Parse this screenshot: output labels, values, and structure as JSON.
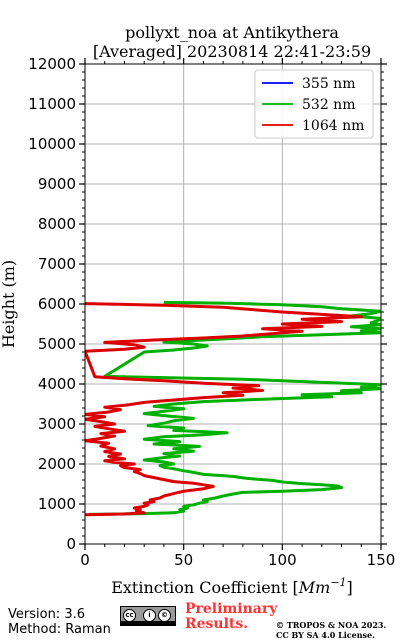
{
  "chart_data": {
    "type": "line",
    "title_line1": "pollyxt_noa at Antikythera",
    "title_line2": "[Averaged] 20230814 22:41-23:59",
    "xlabel": "Extinction Coefficient [",
    "xlabel_unit": "Mm",
    "xlabel_exp": "−1",
    "xlabel_close": "]",
    "ylabel": "Height (m)",
    "xlim": [
      0,
      150
    ],
    "ylim": [
      0,
      12000
    ],
    "xticks": [
      0,
      50,
      100,
      150
    ],
    "yticks": [
      0,
      1000,
      2000,
      3000,
      4000,
      5000,
      6000,
      7000,
      8000,
      9000,
      10000,
      11000,
      12000
    ],
    "grid": true,
    "legend_position": "top-right",
    "series": [
      {
        "name": "355 nm",
        "color": "#0000ff",
        "points": []
      },
      {
        "name": "532 nm",
        "color": "#00b000",
        "points": [
          [
            2,
            740
          ],
          [
            30,
            760
          ],
          [
            45,
            780
          ],
          [
            50,
            820
          ],
          [
            48,
            860
          ],
          [
            52,
            900
          ],
          [
            50,
            940
          ],
          [
            55,
            980
          ],
          [
            58,
            1020
          ],
          [
            62,
            1060
          ],
          [
            60,
            1100
          ],
          [
            66,
            1150
          ],
          [
            70,
            1200
          ],
          [
            75,
            1250
          ],
          [
            80,
            1290
          ],
          [
            100,
            1320
          ],
          [
            120,
            1360
          ],
          [
            130,
            1410
          ],
          [
            128,
            1450
          ],
          [
            120,
            1480
          ],
          [
            110,
            1510
          ],
          [
            100,
            1550
          ],
          [
            95,
            1590
          ],
          [
            82,
            1640
          ],
          [
            75,
            1690
          ],
          [
            60,
            1740
          ],
          [
            55,
            1790
          ],
          [
            50,
            1830
          ],
          [
            45,
            1880
          ],
          [
            40,
            1920
          ],
          [
            38,
            1960
          ],
          [
            45,
            2000
          ],
          [
            40,
            2050
          ],
          [
            30,
            2100
          ],
          [
            38,
            2150
          ],
          [
            48,
            2200
          ],
          [
            40,
            2260
          ],
          [
            55,
            2320
          ],
          [
            45,
            2380
          ],
          [
            58,
            2440
          ],
          [
            35,
            2500
          ],
          [
            48,
            2560
          ],
          [
            30,
            2620
          ],
          [
            40,
            2680
          ],
          [
            60,
            2730
          ],
          [
            72,
            2780
          ],
          [
            45,
            2840
          ],
          [
            50,
            2900
          ],
          [
            32,
            2960
          ],
          [
            40,
            3020
          ],
          [
            45,
            3080
          ],
          [
            55,
            3140
          ],
          [
            42,
            3200
          ],
          [
            30,
            3260
          ],
          [
            40,
            3320
          ],
          [
            50,
            3380
          ],
          [
            35,
            3440
          ],
          [
            45,
            3500
          ],
          [
            60,
            3560
          ],
          [
            90,
            3620
          ],
          [
            125,
            3680
          ],
          [
            110,
            3730
          ],
          [
            140,
            3780
          ],
          [
            130,
            3830
          ],
          [
            150,
            3880
          ],
          [
            140,
            3920
          ],
          [
            150,
            3980
          ],
          [
            125,
            4030
          ],
          [
            100,
            4080
          ],
          [
            80,
            4120
          ],
          [
            40,
            4160
          ],
          [
            10,
            4190
          ],
          [
            30,
            4800
          ],
          [
            45,
            4850
          ],
          [
            55,
            4900
          ],
          [
            62,
            4950
          ],
          [
            55,
            5000
          ],
          [
            40,
            5050
          ],
          [
            60,
            5100
          ],
          [
            90,
            5180
          ],
          [
            120,
            5230
          ],
          [
            150,
            5280
          ],
          [
            140,
            5330
          ],
          [
            150,
            5380
          ],
          [
            135,
            5430
          ],
          [
            150,
            5480
          ],
          [
            145,
            5530
          ],
          [
            148,
            5580
          ],
          [
            150,
            5640
          ],
          [
            135,
            5700
          ],
          [
            145,
            5760
          ],
          [
            150,
            5820
          ],
          [
            130,
            5880
          ],
          [
            120,
            5930
          ],
          [
            100,
            5980
          ],
          [
            73,
            6020
          ],
          [
            40,
            6040
          ]
        ]
      },
      {
        "name": "1064 nm",
        "color": "#dd0000",
        "points": [
          [
            0,
            730
          ],
          [
            20,
            750
          ],
          [
            30,
            780
          ],
          [
            26,
            820
          ],
          [
            28,
            860
          ],
          [
            25,
            900
          ],
          [
            30,
            940
          ],
          [
            32,
            980
          ],
          [
            30,
            1020
          ],
          [
            35,
            1060
          ],
          [
            33,
            1100
          ],
          [
            38,
            1150
          ],
          [
            40,
            1200
          ],
          [
            45,
            1260
          ],
          [
            50,
            1320
          ],
          [
            60,
            1380
          ],
          [
            65,
            1440
          ],
          [
            60,
            1480
          ],
          [
            55,
            1520
          ],
          [
            45,
            1560
          ],
          [
            40,
            1610
          ],
          [
            35,
            1660
          ],
          [
            30,
            1710
          ],
          [
            28,
            1760
          ],
          [
            25,
            1810
          ],
          [
            28,
            1860
          ],
          [
            20,
            1910
          ],
          [
            18,
            1960
          ],
          [
            25,
            2000
          ],
          [
            15,
            2040
          ],
          [
            10,
            2080
          ],
          [
            20,
            2130
          ],
          [
            12,
            2190
          ],
          [
            18,
            2250
          ],
          [
            10,
            2310
          ],
          [
            15,
            2380
          ],
          [
            8,
            2450
          ],
          [
            12,
            2520
          ],
          [
            0,
            2580
          ],
          [
            8,
            2640
          ],
          [
            15,
            2700
          ],
          [
            8,
            2760
          ],
          [
            20,
            2820
          ],
          [
            12,
            2880
          ],
          [
            5,
            2940
          ],
          [
            15,
            3000
          ],
          [
            8,
            3060
          ],
          [
            0,
            3120
          ],
          [
            10,
            3180
          ],
          [
            0,
            3240
          ],
          [
            12,
            3300
          ],
          [
            18,
            3360
          ],
          [
            10,
            3420
          ],
          [
            22,
            3480
          ],
          [
            30,
            3540
          ],
          [
            45,
            3600
          ],
          [
            60,
            3660
          ],
          [
            80,
            3720
          ],
          [
            70,
            3780
          ],
          [
            90,
            3840
          ],
          [
            75,
            3900
          ],
          [
            88,
            3960
          ],
          [
            60,
            4020
          ],
          [
            40,
            4080
          ],
          [
            20,
            4130
          ],
          [
            5,
            4180
          ],
          [
            0,
            4820
          ],
          [
            20,
            4870
          ],
          [
            30,
            4920
          ],
          [
            25,
            4980
          ],
          [
            10,
            5040
          ],
          [
            35,
            5100
          ],
          [
            60,
            5150
          ],
          [
            80,
            5200
          ],
          [
            95,
            5260
          ],
          [
            110,
            5320
          ],
          [
            90,
            5380
          ],
          [
            120,
            5440
          ],
          [
            100,
            5500
          ],
          [
            130,
            5560
          ],
          [
            110,
            5620
          ],
          [
            140,
            5680
          ],
          [
            120,
            5740
          ],
          [
            100,
            5800
          ],
          [
            85,
            5860
          ],
          [
            70,
            5920
          ],
          [
            40,
            5970
          ],
          [
            20,
            5990
          ],
          [
            0,
            6010
          ]
        ]
      }
    ]
  },
  "footer": {
    "version": "Version: 3.6",
    "method": "Method: Raman",
    "preliminary_line1": "Preliminary",
    "preliminary_line2": "Results.",
    "copyright_line1": "© TROPOS & NOA 2023.",
    "copyright_line2": "CC BY SA 4.0 License.",
    "preliminary_color": "#ff3333"
  }
}
